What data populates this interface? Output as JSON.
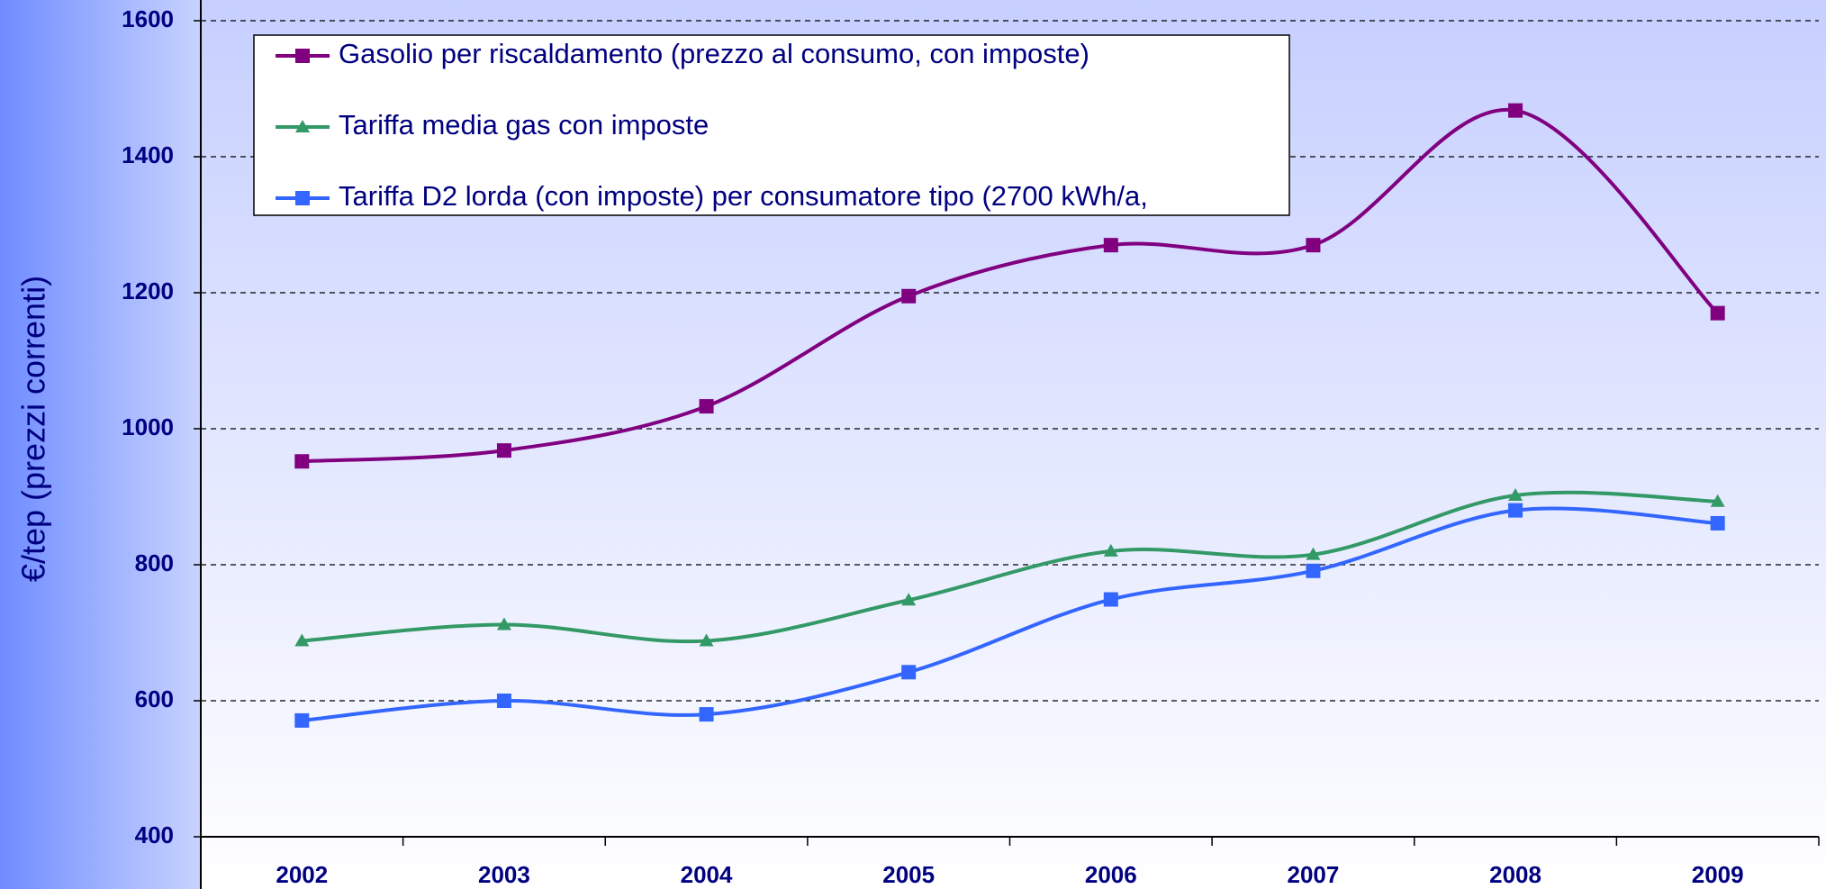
{
  "chart_data": {
    "type": "line",
    "y_label": "€/tep (prezzi correnti)",
    "categories": [
      "2002",
      "2003",
      "2004",
      "2005",
      "2006",
      "2007",
      "2008",
      "2009"
    ],
    "series": [
      {
        "name": "Gasolio per riscaldamento (prezzo al consumo, con imposte)",
        "color": "#800080",
        "marker": "square",
        "values": [
          952,
          968,
          1033,
          1195,
          1270,
          1270,
          1468,
          1170
        ]
      },
      {
        "name": "Tariffa media gas con imposte",
        "color": "#339966",
        "marker": "triangle",
        "values": [
          688,
          712,
          688,
          748,
          820,
          815,
          902,
          893
        ]
      },
      {
        "name": "Tariffa D2 lorda (con imposte) per consumatore tipo (2700 kWh/a,",
        "color": "#3366ff",
        "marker": "square",
        "values": [
          571,
          600,
          580,
          642,
          749,
          791,
          880,
          861
        ]
      }
    ],
    "ylim": [
      400,
      1600
    ],
    "yticks": [
      400,
      600,
      800,
      1000,
      1200,
      1400,
      1600
    ],
    "grid": true,
    "legend": "upper left",
    "smooth": true
  }
}
